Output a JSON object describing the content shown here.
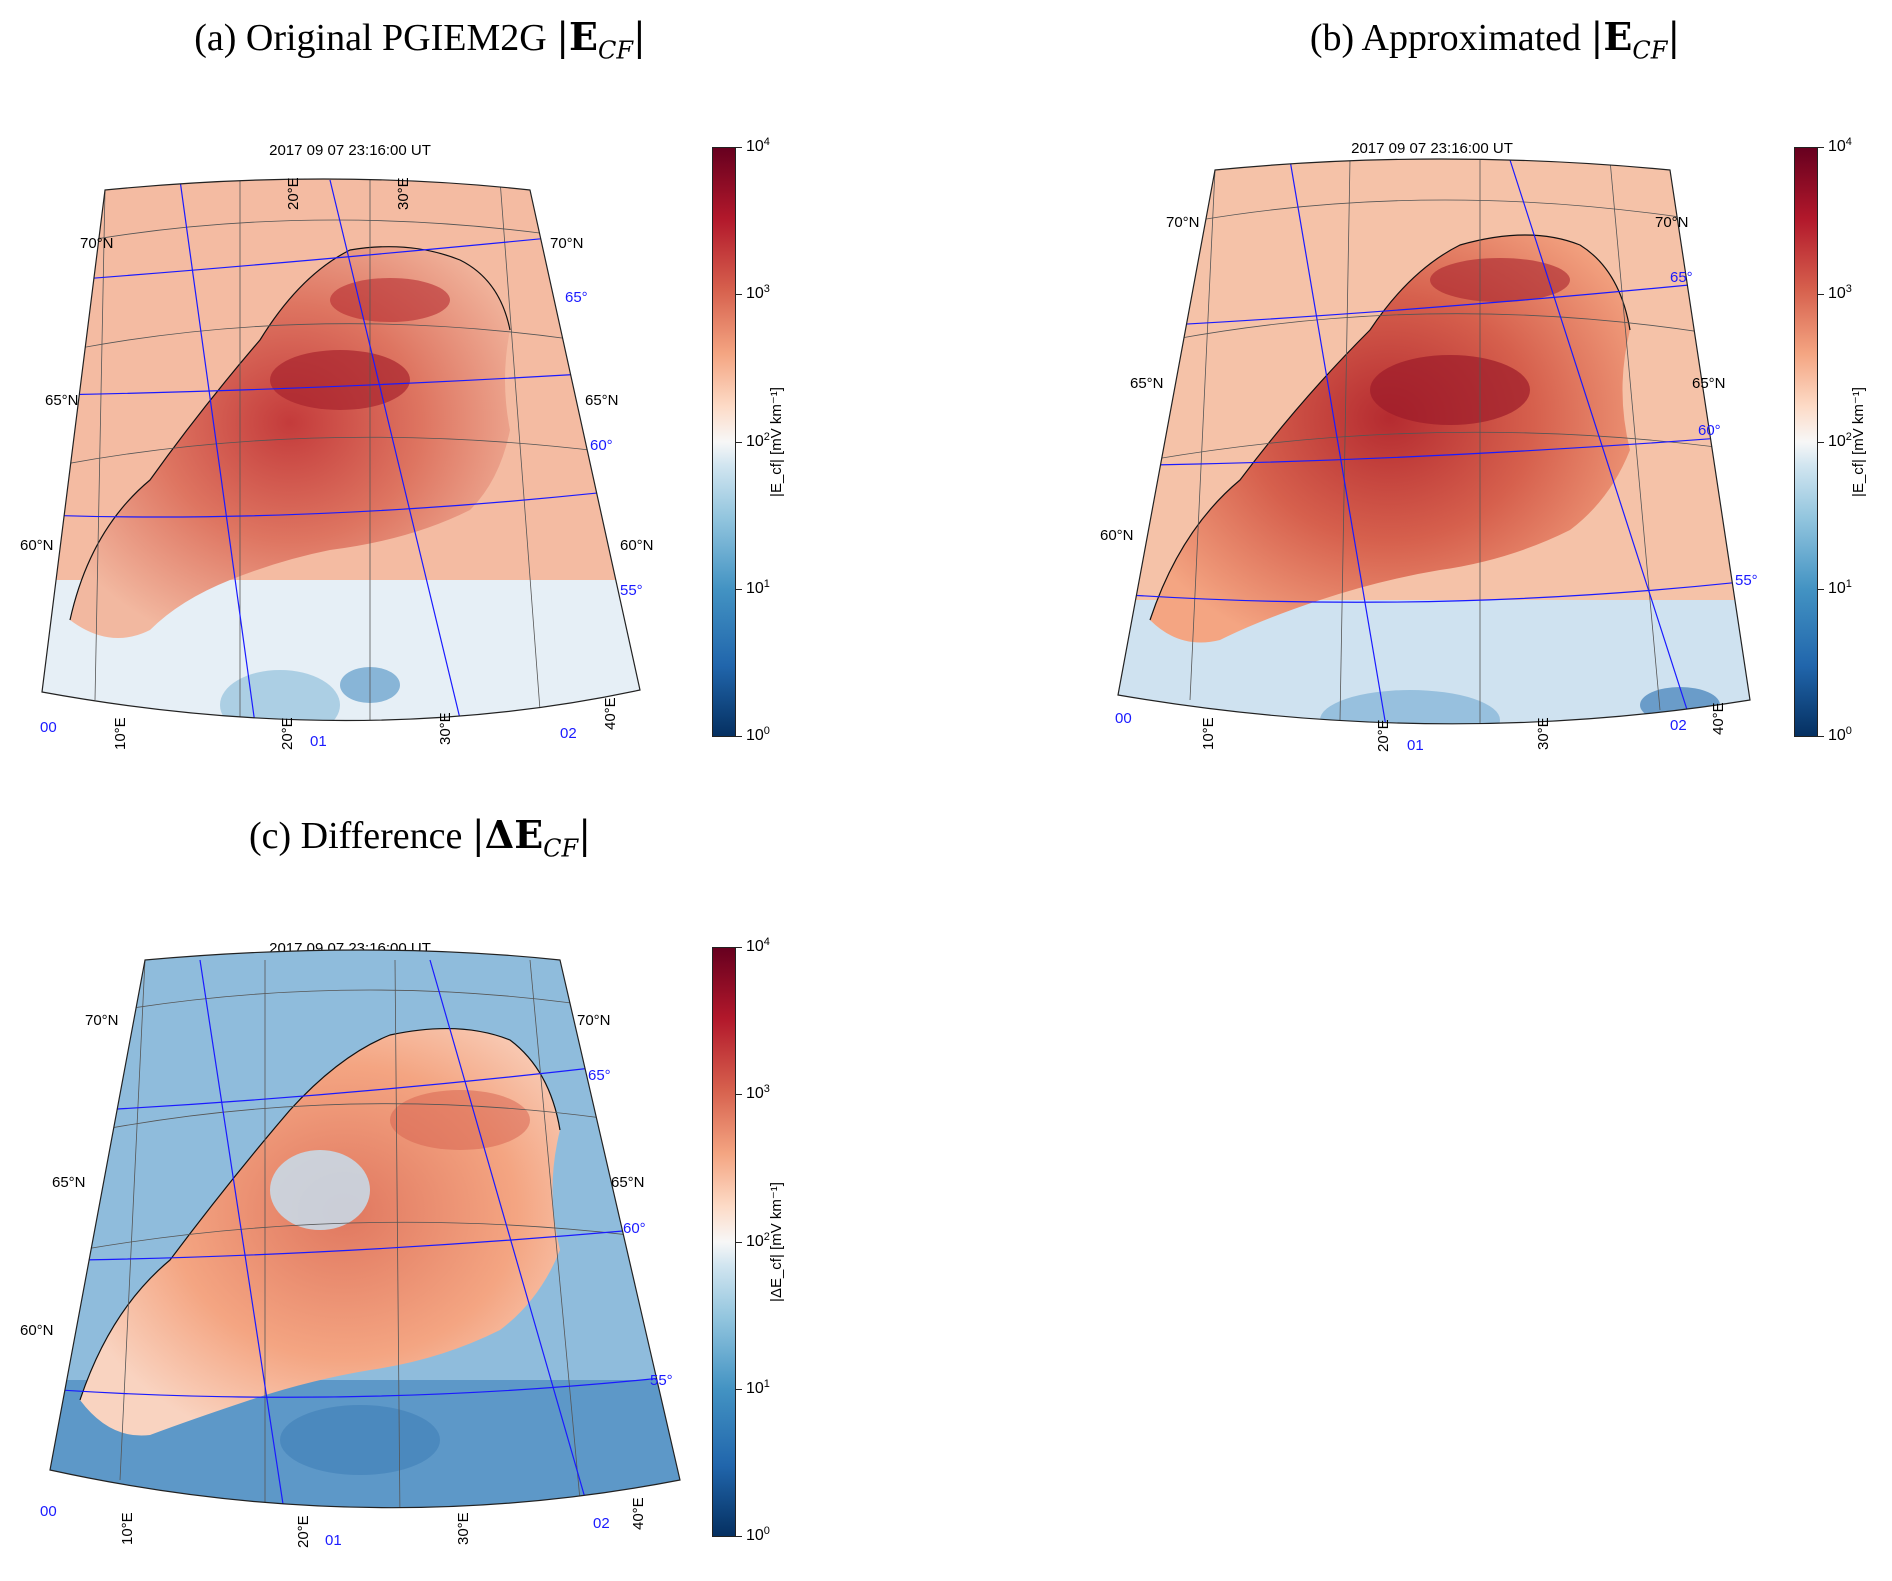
{
  "panels": [
    {
      "title_prefix": "(a) Original PGIEM2G",
      "title_math": "E",
      "title_sub": "CF",
      "timestamp": "2017 09 07 23:16:00 UT",
      "colorbar_label": "|E_cf| [mV km⁻¹]",
      "colormap": "RdBu_r",
      "dominant": "red"
    },
    {
      "title_prefix": "(b) Approximated",
      "title_math": "E",
      "title_sub": "CF",
      "timestamp": "2017 09 07 23:16:00 UT",
      "colorbar_label": "|E_cf| [mV km⁻¹]",
      "colormap": "RdBu_r",
      "dominant": "red"
    },
    {
      "title_prefix": "(c) Difference",
      "title_math": "ΔE",
      "title_sub": "CF",
      "timestamp": "2017 09 07 23:16:00 UT",
      "colorbar_label": "|ΔE_cf| [mV km⁻¹]",
      "colormap": "RdBu_r",
      "dominant": "blue"
    }
  ],
  "colorbar_ticks": [
    {
      "base": "10",
      "exp": "4"
    },
    {
      "base": "10",
      "exp": "3"
    },
    {
      "base": "10",
      "exp": "2"
    },
    {
      "base": "10",
      "exp": "1"
    },
    {
      "base": "10",
      "exp": "0"
    }
  ],
  "geo_labels": {
    "lat": [
      "70°N",
      "65°N",
      "60°N"
    ],
    "lon_bottom": [
      "10°E",
      "20°E",
      "30°E",
      "40°E"
    ],
    "lon_top": [
      "20°E",
      "30°E"
    ],
    "mag_lat": [
      "65°",
      "60°",
      "55°"
    ],
    "mlt": [
      "00",
      "01",
      "02"
    ]
  },
  "colors": {
    "graticule": "#555555",
    "magnetic_grid": "#1a1aff",
    "red_high": "#b2182b",
    "blue_low": "#2166ac"
  }
}
